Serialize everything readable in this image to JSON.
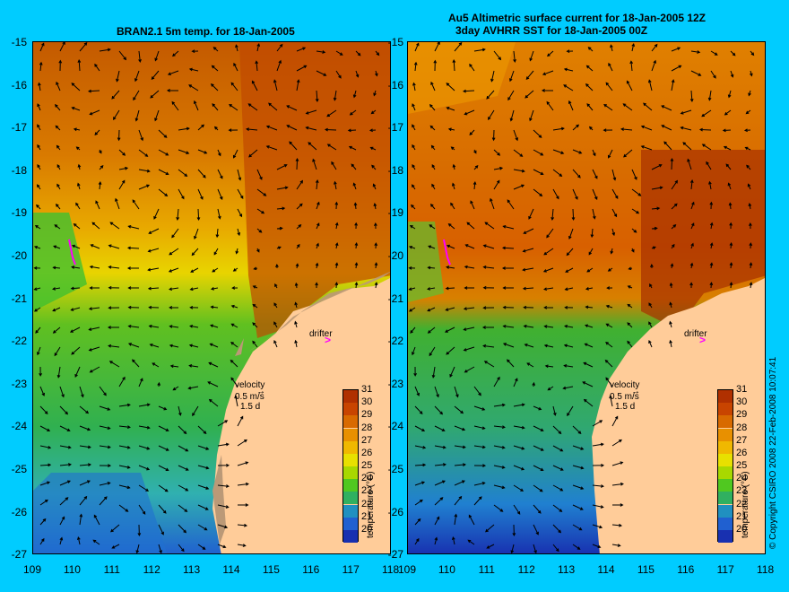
{
  "left_panel": {
    "title": "BRAN2.1 5m temp. for 18-Jan-2005",
    "velocity_label": "velocity",
    "velocity_scale": "0.5 m/s",
    "velocity_duration": "1.5 d",
    "drifter_label": "drifter"
  },
  "right_panel": {
    "title_line1": "Au5 Altimetric surface current for 18-Jan-2005 12Z",
    "title_line2": "3day AVHRR SST for 18-Jan-2005 00Z",
    "velocity_label": "velocity",
    "velocity_scale": "0.5 m/s",
    "velocity_duration": "1.5 d",
    "drifter_label": "drifter"
  },
  "y_axis": [
    "-15",
    "-16",
    "-17",
    "-18",
    "-19",
    "-20",
    "-21",
    "-22",
    "-23",
    "-24",
    "-25",
    "-26",
    "-27"
  ],
  "x_axis": [
    "109",
    "110",
    "111",
    "112",
    "113",
    "114",
    "115",
    "116",
    "117",
    "118"
  ],
  "colorbar": {
    "title": "temperature (°C)",
    "ticks": [
      "31",
      "30",
      "29",
      "28",
      "27",
      "26",
      "25",
      "24",
      "23",
      "22",
      "21",
      "20"
    ],
    "colors": [
      "#b03000",
      "#c84400",
      "#d86a00",
      "#e89000",
      "#f0b800",
      "#e8e000",
      "#a8d800",
      "#50c820",
      "#30b060",
      "#2090c0",
      "#2060d0",
      "#1830b0"
    ]
  },
  "copyright": "© Copyright CSIRO 2008   22-Feb-2008 10:07:41",
  "colors": {
    "background": "#00ccff",
    "land": "#ffcc99",
    "drifter": "#ff00ff"
  }
}
